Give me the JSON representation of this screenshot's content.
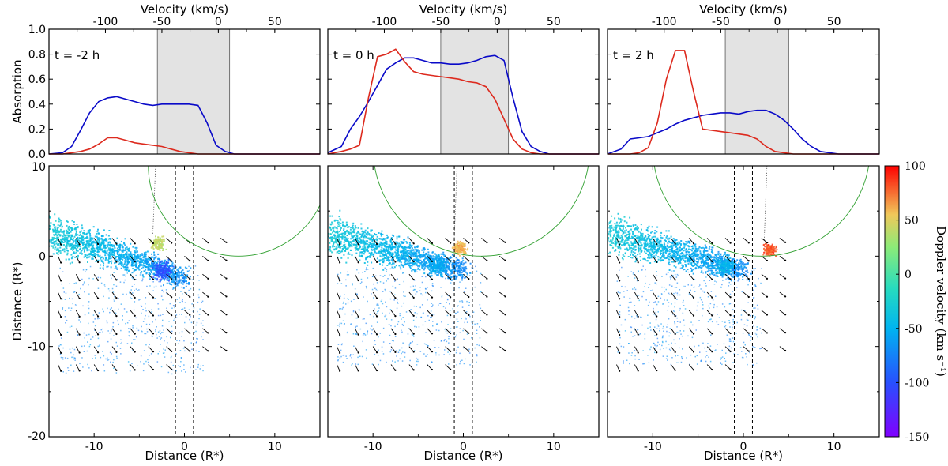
{
  "colors": {
    "blue": "#0a0ac8",
    "red": "#dd2a1e",
    "shade": "#e3e3e3",
    "green": "#30a030",
    "axis": "#000000"
  },
  "chart_data": [
    {
      "type": "line",
      "panel": "top-1",
      "annotation": "t = -2 h",
      "top_xlabel": "Velocity (km/s)",
      "ylabel": "Absorption",
      "xlim": [
        -150,
        150
      ],
      "ylim": [
        0,
        1.0
      ],
      "top_xlim": [
        -150,
        90
      ],
      "top_ticks": [
        -100,
        -50,
        0,
        50
      ],
      "top_tick_labels": [
        "-100",
        "-50",
        "0",
        "50"
      ],
      "y_ticks": [
        0,
        0.2,
        0.4,
        0.6,
        0.8,
        1.0
      ],
      "y_tick_labels": [
        "0.0",
        "0.2",
        "0.4",
        "0.6",
        "0.8",
        "1.0"
      ],
      "shaded_x": [
        -3,
        5
      ],
      "series": [
        {
          "name": "blue",
          "x": [
            -15,
            -13.5,
            -12.5,
            -11.5,
            -10.5,
            -9.5,
            -8.5,
            -7.5,
            -6.5,
            -5.5,
            -4.5,
            -3.5,
            -2.5,
            -1.5,
            -0.5,
            0.5,
            1.5,
            2.5,
            3.5,
            4.5,
            5.5,
            6.5,
            7.5,
            8.5,
            9.5,
            10.5,
            11.5,
            12.5,
            13.5,
            15
          ],
          "y": [
            0,
            0.01,
            0.06,
            0.19,
            0.33,
            0.42,
            0.45,
            0.46,
            0.44,
            0.42,
            0.4,
            0.39,
            0.4,
            0.4,
            0.4,
            0.4,
            0.39,
            0.25,
            0.07,
            0.02,
            0,
            0,
            0,
            0,
            0,
            0,
            0,
            0,
            0,
            0
          ]
        },
        {
          "name": "red",
          "x": [
            -15,
            -13.5,
            -12.5,
            -11.5,
            -10.5,
            -9.5,
            -8.5,
            -7.5,
            -6.5,
            -5.5,
            -4.5,
            -3.5,
            -2.5,
            -1.5,
            -0.5,
            0.5,
            1.5,
            2.5,
            3.5,
            4.5,
            5.5,
            6.5,
            7.5,
            8.5,
            9.5,
            10.5,
            11.5,
            12.5,
            13.5,
            15
          ],
          "y": [
            0,
            0,
            0.01,
            0.02,
            0.04,
            0.08,
            0.13,
            0.13,
            0.11,
            0.09,
            0.08,
            0.07,
            0.06,
            0.04,
            0.02,
            0.01,
            0,
            0,
            0,
            0,
            0,
            0,
            0,
            0,
            0,
            0,
            0,
            0,
            0,
            0
          ]
        }
      ]
    },
    {
      "type": "line",
      "panel": "top-2",
      "annotation": "t = 0 h",
      "top_xlabel": "Velocity (km/s)",
      "xlim": [
        -150,
        150
      ],
      "ylim": [
        0,
        1.0
      ],
      "top_xlim": [
        -150,
        90
      ],
      "top_ticks": [
        -100,
        -50,
        0,
        50
      ],
      "top_tick_labels": [
        "-100",
        "-50",
        "0",
        "50"
      ],
      "y_ticks": [
        0,
        0.2,
        0.4,
        0.6,
        0.8,
        1.0
      ],
      "shaded_x": [
        -2.5,
        5
      ],
      "series": [
        {
          "name": "blue",
          "x": [
            -15,
            -13.5,
            -12.5,
            -11.5,
            -10.5,
            -9.5,
            -8.5,
            -7.5,
            -6.5,
            -5.5,
            -4.5,
            -3.5,
            -2.5,
            -1.5,
            -0.5,
            0.5,
            1.5,
            2.5,
            3.5,
            4.5,
            5.5,
            6.5,
            7.5,
            8.5,
            9.5,
            10.5,
            11.5,
            12.5,
            13.5,
            15
          ],
          "y": [
            0.01,
            0.06,
            0.2,
            0.3,
            0.42,
            0.55,
            0.68,
            0.73,
            0.77,
            0.77,
            0.75,
            0.73,
            0.73,
            0.72,
            0.72,
            0.73,
            0.75,
            0.78,
            0.79,
            0.75,
            0.45,
            0.18,
            0.06,
            0.02,
            0,
            0,
            0,
            0,
            0,
            0
          ]
        },
        {
          "name": "red",
          "x": [
            -15,
            -13.5,
            -12.5,
            -11.5,
            -10.5,
            -9.5,
            -8.5,
            -7.5,
            -6.5,
            -5.5,
            -4.5,
            -3.5,
            -2.5,
            -1.5,
            -0.5,
            0.5,
            1.5,
            2.5,
            3.5,
            4.5,
            5.5,
            6.5,
            7.5,
            8.5,
            9.5,
            10.5,
            11.5,
            12.5,
            13.5,
            15
          ],
          "y": [
            0,
            0.02,
            0.04,
            0.07,
            0.45,
            0.78,
            0.8,
            0.84,
            0.74,
            0.66,
            0.64,
            0.63,
            0.62,
            0.61,
            0.6,
            0.58,
            0.57,
            0.54,
            0.44,
            0.28,
            0.12,
            0.04,
            0.01,
            0,
            0,
            0,
            0,
            0,
            0,
            0
          ]
        }
      ]
    },
    {
      "type": "line",
      "panel": "top-3",
      "annotation": "t = 2 h",
      "top_xlabel": "Velocity (km/s)",
      "xlim": [
        -150,
        150
      ],
      "ylim": [
        0,
        1.0
      ],
      "top_xlim": [
        -150,
        90
      ],
      "top_ticks": [
        -100,
        -50,
        0,
        50
      ],
      "top_tick_labels": [
        "-100",
        "-50",
        "0",
        "50"
      ],
      "y_ticks": [
        0,
        0.2,
        0.4,
        0.6,
        0.8,
        1.0
      ],
      "shaded_x": [
        -2,
        5
      ],
      "series": [
        {
          "name": "blue",
          "x": [
            -15,
            -13.5,
            -12.5,
            -11.5,
            -10.5,
            -9.5,
            -8.5,
            -7.5,
            -6.5,
            -5.5,
            -4.5,
            -3.5,
            -2.5,
            -1.5,
            -0.5,
            0.5,
            1.5,
            2.5,
            3.5,
            4.5,
            5.5,
            6.5,
            7.5,
            8.5,
            9.5,
            10.5,
            11.5,
            12.5,
            13.5,
            15
          ],
          "y": [
            0,
            0.04,
            0.12,
            0.13,
            0.14,
            0.17,
            0.2,
            0.24,
            0.27,
            0.29,
            0.31,
            0.32,
            0.33,
            0.33,
            0.32,
            0.34,
            0.35,
            0.35,
            0.32,
            0.27,
            0.2,
            0.12,
            0.06,
            0.02,
            0.01,
            0,
            0,
            0,
            0,
            0
          ]
        },
        {
          "name": "red",
          "x": [
            -15,
            -13.5,
            -12.5,
            -11.5,
            -10.5,
            -9.5,
            -8.5,
            -7.5,
            -6.5,
            -5.5,
            -4.5,
            -3.5,
            -2.5,
            -1.5,
            -0.5,
            0.5,
            1.5,
            2.5,
            3.5,
            4.5,
            5.5,
            6.5,
            7.5,
            8.5,
            9.5,
            10.5,
            11.5,
            12.5,
            13.5,
            15
          ],
          "y": [
            0,
            0,
            0,
            0.01,
            0.05,
            0.25,
            0.6,
            0.83,
            0.83,
            0.5,
            0.2,
            0.19,
            0.18,
            0.17,
            0.16,
            0.15,
            0.12,
            0.06,
            0.02,
            0.01,
            0,
            0,
            0,
            0,
            0,
            0,
            0,
            0,
            0,
            0
          ]
        }
      ]
    },
    {
      "type": "scatter",
      "panel": "bottom-1",
      "xlabel": "Distance (R*)",
      "ylabel": "Distance (R*)",
      "xlim": [
        -15,
        15
      ],
      "ylim": [
        -20,
        10
      ],
      "x_ticks": [
        -10,
        0,
        10
      ],
      "x_tick_labels": [
        "-10",
        "0",
        "10"
      ],
      "y_ticks": [
        -20,
        -10,
        0,
        10
      ],
      "y_tick_labels": [
        "-20",
        "-10",
        "0",
        "10"
      ],
      "dashed_x": [
        -1,
        1
      ],
      "circle": {
        "cx": 6,
        "cy": 10,
        "r": 10
      },
      "hotspot": {
        "x": -3,
        "y": 1.5,
        "vel": 40
      },
      "coldspot": {
        "x": -2.5,
        "y": -1.5,
        "vel": -100
      }
    },
    {
      "type": "scatter",
      "panel": "bottom-2",
      "xlabel": "Distance (R*)",
      "xlim": [
        -15,
        15
      ],
      "ylim": [
        -20,
        10
      ],
      "x_ticks": [
        -10,
        0,
        10
      ],
      "x_tick_labels": [
        "-10",
        "0",
        "10"
      ],
      "dashed_x": [
        -1,
        1
      ],
      "circle": {
        "cx": 2,
        "cy": 12,
        "r": 12
      },
      "hotspot": {
        "x": -0.5,
        "y": 1,
        "vel": 60
      },
      "coldspot": {
        "x": -3,
        "y": -1,
        "vel": -55
      }
    },
    {
      "type": "scatter",
      "panel": "bottom-3",
      "xlabel": "Distance (R*)",
      "xlim": [
        -15,
        15
      ],
      "ylim": [
        -20,
        10
      ],
      "x_ticks": [
        -10,
        0,
        10
      ],
      "x_tick_labels": [
        "-10",
        "0",
        "10"
      ],
      "dashed_x": [
        -1,
        1
      ],
      "circle": {
        "cx": 2,
        "cy": 12,
        "r": 12
      },
      "hotspot": {
        "x": 2.8,
        "y": 0.8,
        "vel": 80
      },
      "coldspot": {
        "x": -2,
        "y": -1,
        "vel": -50
      }
    }
  ],
  "colorbar": {
    "label": "Doppler velocity (km s⁻¹)",
    "min": -150,
    "max": 100,
    "ticks": [
      100,
      50,
      0,
      -50,
      -100,
      -150
    ],
    "tick_labels": [
      "100",
      "50",
      "0",
      "-50",
      "-100",
      "-150"
    ]
  }
}
